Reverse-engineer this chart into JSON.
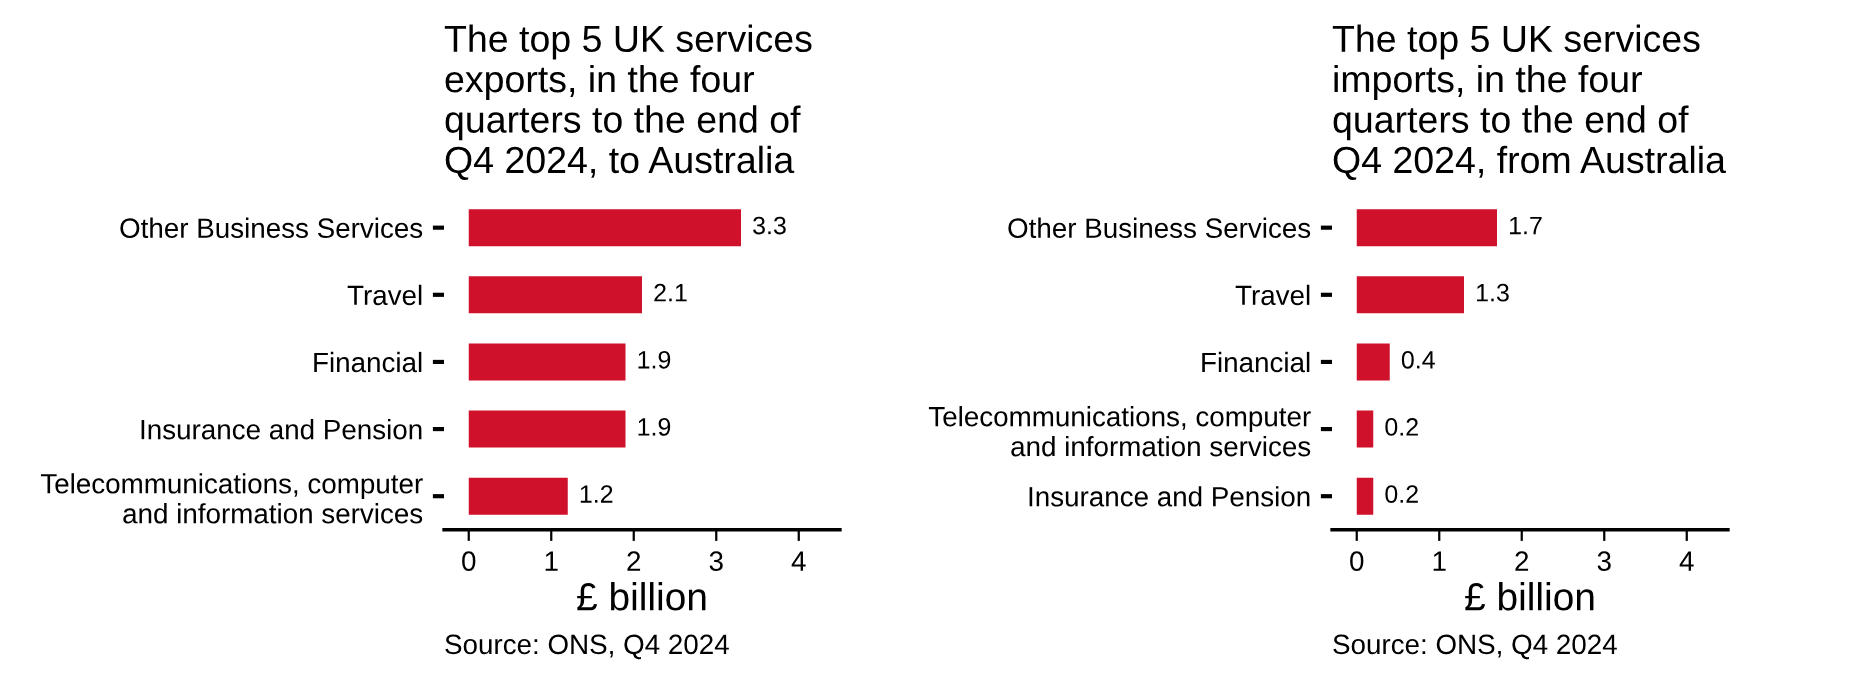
{
  "chart_data": [
    {
      "type": "bar",
      "orientation": "horizontal",
      "title": "The top 5 UK services exports, in the four quarters to the end of Q4 2024, to Australia",
      "xlabel": "£ billion",
      "categories": [
        "Other Business Services",
        "Travel",
        "Financial",
        "Insurance and Pension",
        "Telecommunications, computer and information services"
      ],
      "values": [
        3.3,
        2.1,
        1.9,
        1.9,
        1.2
      ],
      "color": "#d0112b",
      "xlim": [
        -0.3,
        4.5
      ],
      "xticks": [
        0,
        1,
        2,
        3,
        4
      ],
      "data_labels": true,
      "annotations": [
        "Source: ONS, Q4 2024"
      ]
    },
    {
      "type": "bar",
      "orientation": "horizontal",
      "title": "The top 5 UK services imports, in the four quarters to the end of Q4 2024, from Australia",
      "xlabel": "£ billion",
      "categories": [
        "Other Business Services",
        "Travel",
        "Financial",
        "Telecommunications, computer and information services",
        "Insurance and Pension"
      ],
      "values": [
        1.7,
        1.3,
        0.4,
        0.2,
        0.2
      ],
      "color": "#d0112b",
      "xlim": [
        -0.3,
        4.5
      ],
      "xticks": [
        0,
        1,
        2,
        3,
        4
      ],
      "data_labels": true,
      "annotations": [
        "Source: ONS, Q4 2024"
      ]
    }
  ]
}
